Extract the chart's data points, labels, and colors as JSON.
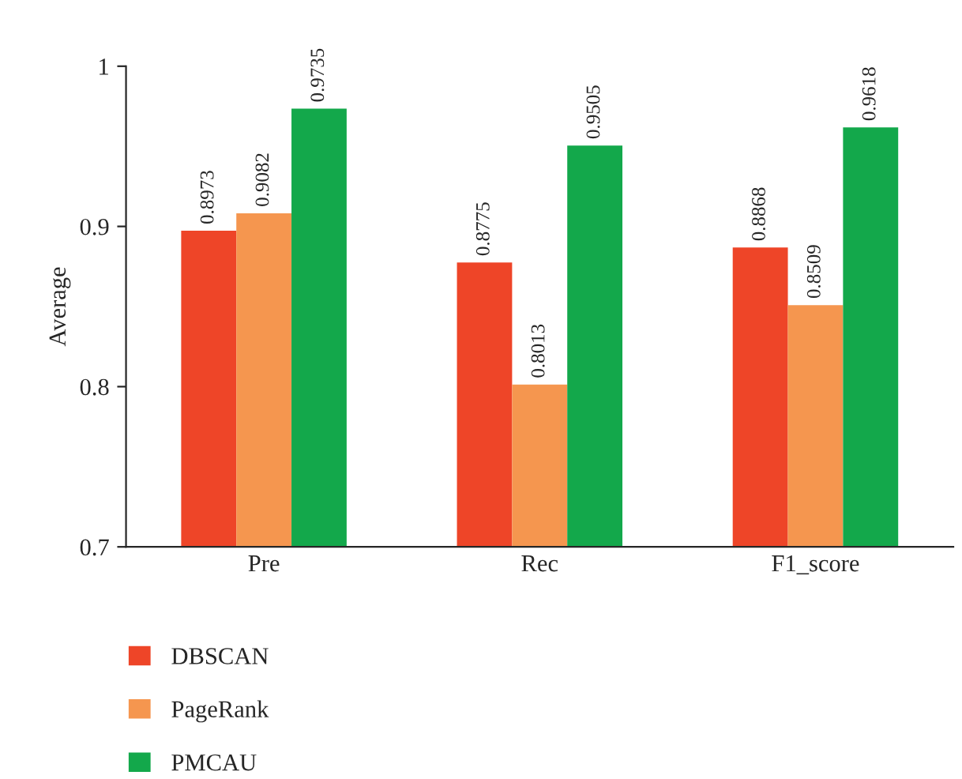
{
  "chart_data": {
    "type": "bar",
    "ylabel": "Average",
    "categories": [
      "Pre",
      "Rec",
      "F1_score"
    ],
    "series": [
      {
        "name": "DBSCAN",
        "color": "#ee4528",
        "values": [
          0.8973,
          0.8775,
          0.8868
        ]
      },
      {
        "name": "PageRank",
        "color": "#f5964f",
        "values": [
          0.9082,
          0.8013,
          0.8509
        ]
      },
      {
        "name": "PMCAU",
        "color": "#13a84b",
        "values": [
          0.9735,
          0.9505,
          0.9618
        ]
      }
    ],
    "ylim": [
      0.7,
      1
    ],
    "yticks": [
      0.7,
      0.8,
      0.9,
      1
    ],
    "data_labels": true,
    "grid": false,
    "legend": "bottom left"
  }
}
